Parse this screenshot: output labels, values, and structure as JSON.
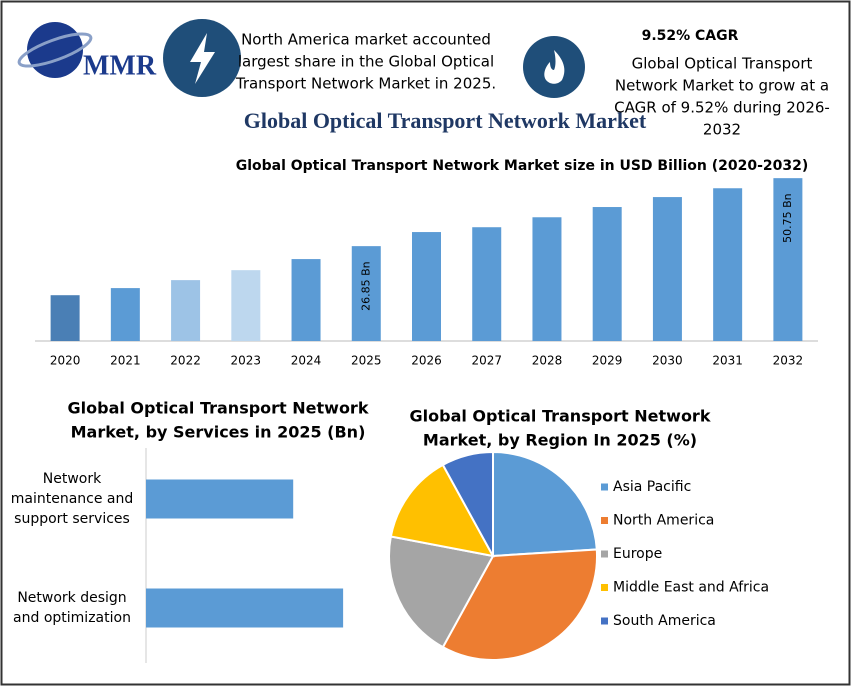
{
  "header": {
    "logo": "MMR",
    "left_note": [
      "North America market accounted",
      "largest share in the Global Optical",
      "Transport Network Market in 2025."
    ],
    "cagr_title": "9.52% CAGR",
    "cagr_note": [
      "Global Optical Transport",
      "Network Market to grow at a",
      "CAGR of 9.52% during 2026-",
      "2032"
    ],
    "title": "Global Optical Transport Network Market"
  },
  "chart_data": [
    {
      "type": "bar",
      "title": "Global Optical Transport Network Market size in USD Billion (2020-2032)",
      "categories": [
        "2020",
        "2021",
        "2022",
        "2023",
        "2024",
        "2025",
        "2026",
        "2027",
        "2028",
        "2029",
        "2030",
        "2031",
        "2032"
      ],
      "values": [
        9.6,
        12.1,
        14.9,
        18.4,
        22.3,
        26.85,
        31.8,
        33.5,
        37.0,
        40.6,
        44.1,
        47.2,
        50.75
      ],
      "value_labels": [
        null,
        null,
        null,
        null,
        null,
        "26.85 Bn",
        null,
        null,
        null,
        null,
        null,
        null,
        "50.75 Bn"
      ],
      "colors": [
        "#4a7fb5",
        "#5b9bd5",
        "#9dc3e6",
        "#bdd7ee",
        "#5b9bd5",
        "#5b9bd5",
        "#5b9bd5",
        "#5b9bd5",
        "#5b9bd5",
        "#5b9bd5",
        "#5b9bd5",
        "#5b9bd5",
        "#5b9bd5"
      ],
      "ylim": [
        -6.5,
        52
      ]
    },
    {
      "type": "hbar",
      "title": [
        "Global Optical Transport Network",
        "Market, by Services in 2025 (Bn)"
      ],
      "categories": [
        [
          "Network",
          "maintenance and",
          "support services"
        ],
        [
          "Network design",
          "and optimization"
        ]
      ],
      "values": [
        11.5,
        15.4
      ],
      "color": "#5b9bd5",
      "xlim": [
        0,
        20
      ]
    },
    {
      "type": "pie",
      "title": [
        "Global Optical Transport Network",
        "Market, by Region In 2025 (%)"
      ],
      "categories": [
        "Asia Pacific",
        "North America",
        "Europe",
        "Middle East and Africa",
        "South America"
      ],
      "values": [
        24,
        34,
        20,
        14,
        8
      ],
      "colors": [
        "#5b9bd5",
        "#ed7d31",
        "#a5a5a5",
        "#ffc000",
        "#4472c4"
      ]
    }
  ]
}
